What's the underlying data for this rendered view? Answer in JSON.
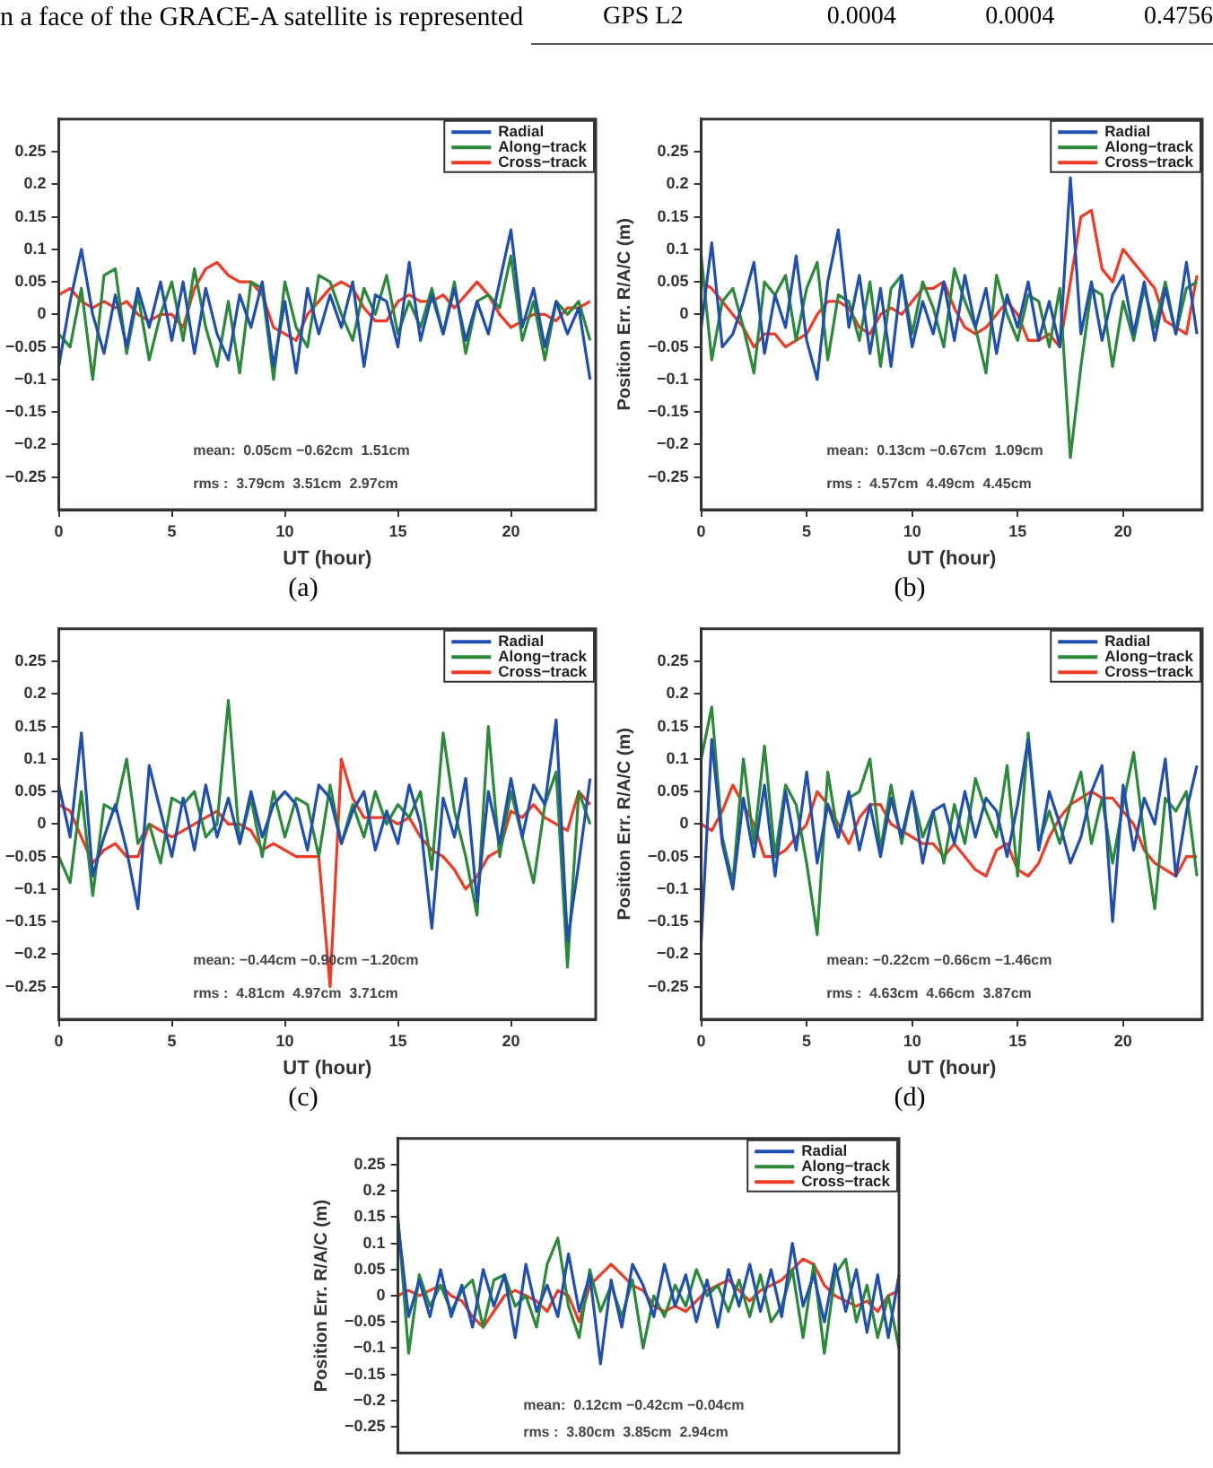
{
  "chart_data": [
    {
      "type": "other",
      "annotations": [
        "n a face of the GRACE-A satellite is represented",
        "GPS L2",
        "0.0004",
        "0.0004",
        "0.4756"
      ]
    },
    {
      "type": "line",
      "xlabel": "UT (hour)",
      "legend": "top right",
      "marker": "none",
      "line_style": "solid",
      "grid": false,
      "x": [
        0,
        0.5,
        1,
        1.5,
        2,
        2.5,
        3,
        3.5,
        4,
        4.5,
        5,
        5.5,
        6,
        6.5,
        7,
        7.5,
        8,
        8.5,
        9,
        9.5,
        10,
        10.5,
        11,
        11.5,
        12,
        12.5,
        13,
        13.5,
        14,
        14.5,
        15,
        15.5,
        16,
        16.5,
        17,
        17.5,
        18,
        18.5,
        19,
        19.5,
        20,
        20.5,
        21,
        21.5,
        22,
        22.5,
        23,
        23.5
      ],
      "xlim": [
        0,
        23.75
      ],
      "xticks": [
        0,
        5,
        10,
        15,
        20
      ],
      "ylim": [
        -0.3,
        0.3
      ],
      "yticks": [
        {
          "value": -0.25,
          "label": "−0.25"
        },
        {
          "value": -0.2,
          "label": "−0.2"
        },
        {
          "value": -0.15,
          "label": "−0.15"
        },
        {
          "value": -0.1,
          "label": "−0.1"
        },
        {
          "value": -0.05,
          "label": "−0.05"
        },
        0,
        0.05,
        0.1,
        0.15,
        0.2,
        0.25
      ],
      "annotations": [
        "mean:  0.05cm −0.62cm  1.51cm",
        "rms :  3.79cm  3.51cm  2.97cm",
        "(a)"
      ],
      "series": [
        {
          "name": "Radial",
          "color": "#1f4fb0",
          "values": [
            -0.08,
            0.02,
            0.1,
            0.0,
            -0.06,
            0.03,
            -0.05,
            0.04,
            -0.02,
            0.05,
            -0.04,
            0.05,
            -0.06,
            0.04,
            -0.03,
            -0.07,
            0.03,
            -0.02,
            0.05,
            -0.08,
            0.02,
            -0.09,
            0.04,
            -0.03,
            0.03,
            -0.02,
            0.05,
            -0.08,
            0.03,
            0.02,
            -0.05,
            0.08,
            -0.04,
            0.03,
            -0.03,
            0.04,
            -0.04,
            0.02,
            -0.03,
            0.05,
            0.13,
            -0.02,
            0.04,
            -0.05,
            0.02,
            -0.03,
            0.01,
            -0.1
          ]
        },
        {
          "name": "Along−track",
          "color": "#2a8a3a",
          "values": [
            -0.03,
            -0.05,
            0.04,
            -0.1,
            0.06,
            0.07,
            -0.06,
            0.03,
            -0.07,
            0.0,
            0.05,
            -0.04,
            0.07,
            -0.02,
            -0.08,
            0.02,
            -0.09,
            0.05,
            0.04,
            -0.1,
            0.05,
            -0.02,
            -0.05,
            0.06,
            0.05,
            0.0,
            -0.04,
            0.04,
            0.0,
            0.06,
            -0.03,
            0.02,
            -0.02,
            0.04,
            -0.03,
            0.05,
            -0.06,
            0.02,
            0.03,
            0.01,
            0.09,
            -0.04,
            0.02,
            -0.07,
            0.02,
            0.0,
            0.02,
            -0.04
          ]
        },
        {
          "name": "Cross−track",
          "color": "#f03a24",
          "values": [
            0.03,
            0.04,
            0.02,
            0.01,
            0.02,
            0.01,
            0.02,
            0.0,
            -0.01,
            0.0,
            0.0,
            -0.02,
            0.04,
            0.07,
            0.08,
            0.06,
            0.05,
            0.05,
            0.03,
            -0.02,
            -0.03,
            -0.04,
            0.0,
            0.02,
            0.04,
            0.05,
            0.04,
            0.01,
            -0.01,
            -0.01,
            0.02,
            0.03,
            0.02,
            0.02,
            0.03,
            0.01,
            0.03,
            0.05,
            0.03,
            0.0,
            -0.02,
            -0.01,
            0.0,
            0.0,
            -0.01,
            0.01,
            0.01,
            0.02
          ]
        }
      ]
    },
    {
      "type": "line",
      "xlabel": "UT (hour)",
      "ylabel": "Position Err. R/A/C (m)",
      "legend": "top right",
      "marker": "none",
      "line_style": "solid",
      "grid": false,
      "x": [
        0,
        0.5,
        1,
        1.5,
        2,
        2.5,
        3,
        3.5,
        4,
        4.5,
        5,
        5.5,
        6,
        6.5,
        7,
        7.5,
        8,
        8.5,
        9,
        9.5,
        10,
        10.5,
        11,
        11.5,
        12,
        12.5,
        13,
        13.5,
        14,
        14.5,
        15,
        15.5,
        16,
        16.5,
        17,
        17.5,
        18,
        18.5,
        19,
        19.5,
        20,
        20.5,
        21,
        21.5,
        22,
        22.5,
        23,
        23.5
      ],
      "xlim": [
        0,
        23.75
      ],
      "xticks": [
        0,
        5,
        10,
        15,
        20
      ],
      "ylim": [
        -0.3,
        0.3
      ],
      "yticks": [
        {
          "value": -0.25,
          "label": "−0.25"
        },
        {
          "value": -0.2,
          "label": "−0.2"
        },
        {
          "value": -0.15,
          "label": "−0.15"
        },
        {
          "value": -0.1,
          "label": "−0.1"
        },
        {
          "value": -0.05,
          "label": "−0.05"
        },
        0,
        0.05,
        0.1,
        0.15,
        0.2,
        0.25
      ],
      "annotations": [
        "mean:  0.13cm −0.67cm  1.09cm",
        "rms :  4.57cm  4.49cm  4.45cm",
        "(b)"
      ],
      "series": [
        {
          "name": "Radial",
          "color": "#1f4fb0",
          "values": [
            -0.02,
            0.11,
            -0.05,
            -0.03,
            0.02,
            0.08,
            -0.06,
            0.03,
            -0.02,
            0.09,
            -0.04,
            -0.1,
            0.05,
            0.13,
            -0.02,
            0.06,
            -0.06,
            0.04,
            -0.08,
            0.06,
            -0.05,
            0.02,
            -0.03,
            0.05,
            -0.04,
            0.06,
            -0.02,
            0.04,
            -0.06,
            0.03,
            -0.02,
            0.05,
            -0.04,
            0.02,
            -0.05,
            0.21,
            -0.03,
            0.05,
            -0.04,
            0.03,
            0.06,
            -0.03,
            0.05,
            -0.04,
            0.04,
            -0.03,
            0.08,
            -0.03
          ]
        },
        {
          "name": "Along−track",
          "color": "#2a8a3a",
          "values": [
            0.09,
            -0.07,
            0.02,
            0.04,
            -0.02,
            -0.09,
            0.05,
            0.03,
            0.06,
            -0.04,
            0.04,
            0.08,
            -0.07,
            0.03,
            0.02,
            -0.04,
            0.05,
            -0.08,
            0.04,
            0.06,
            -0.03,
            0.05,
            0.01,
            -0.05,
            0.07,
            0.02,
            -0.02,
            -0.09,
            0.06,
            0.0,
            -0.04,
            0.03,
            0.02,
            -0.05,
            0.04,
            -0.22,
            -0.08,
            0.04,
            0.03,
            -0.08,
            0.02,
            -0.04,
            0.04,
            -0.02,
            0.05,
            -0.03,
            0.04,
            0.05
          ]
        },
        {
          "name": "Cross−track",
          "color": "#f03a24",
          "values": [
            0.05,
            0.04,
            0.02,
            0.0,
            -0.02,
            -0.05,
            -0.03,
            -0.03,
            -0.05,
            -0.04,
            -0.03,
            0.0,
            0.02,
            0.02,
            0.01,
            -0.02,
            -0.03,
            0.0,
            0.01,
            0.0,
            0.02,
            0.04,
            0.04,
            0.05,
            0.01,
            -0.02,
            -0.03,
            -0.02,
            0.0,
            0.02,
            0.0,
            -0.04,
            -0.04,
            -0.03,
            -0.05,
            0.05,
            0.15,
            0.16,
            0.07,
            0.05,
            0.1,
            0.08,
            0.06,
            0.04,
            -0.01,
            -0.02,
            -0.03,
            0.06
          ]
        }
      ]
    },
    {
      "type": "line",
      "xlabel": "UT (hour)",
      "legend": "top right",
      "marker": "none",
      "line_style": "solid",
      "grid": false,
      "x": [
        0,
        0.5,
        1,
        1.5,
        2,
        2.5,
        3,
        3.5,
        4,
        4.5,
        5,
        5.5,
        6,
        6.5,
        7,
        7.5,
        8,
        8.5,
        9,
        9.5,
        10,
        10.5,
        11,
        11.5,
        12,
        12.5,
        13,
        13.5,
        14,
        14.5,
        15,
        15.5,
        16,
        16.5,
        17,
        17.5,
        18,
        18.5,
        19,
        19.5,
        20,
        20.5,
        21,
        21.5,
        22,
        22.5,
        23,
        23.5
      ],
      "xlim": [
        0,
        23.75
      ],
      "xticks": [
        0,
        5,
        10,
        15,
        20
      ],
      "ylim": [
        -0.3,
        0.3
      ],
      "yticks": [
        {
          "value": -0.25,
          "label": "−0.25"
        },
        {
          "value": -0.2,
          "label": "−0.2"
        },
        {
          "value": -0.15,
          "label": "−0.15"
        },
        {
          "value": -0.1,
          "label": "−0.1"
        },
        {
          "value": -0.05,
          "label": "−0.05"
        },
        0,
        0.05,
        0.1,
        0.15,
        0.2,
        0.25
      ],
      "annotations": [
        "mean: −0.44cm −0.90cm −1.20cm",
        "rms :  4.81cm  4.97cm  3.71cm",
        "(c)"
      ],
      "series": [
        {
          "name": "Radial",
          "color": "#1f4fb0",
          "values": [
            0.06,
            -0.02,
            0.14,
            -0.08,
            -0.02,
            0.03,
            -0.04,
            -0.13,
            0.09,
            0.02,
            -0.05,
            0.04,
            -0.04,
            0.06,
            -0.02,
            0.04,
            -0.03,
            0.05,
            -0.02,
            0.03,
            0.05,
            0.03,
            -0.04,
            0.06,
            0.04,
            -0.03,
            0.02,
            0.05,
            -0.04,
            0.02,
            -0.03,
            0.06,
            0.0,
            -0.16,
            0.04,
            -0.02,
            0.07,
            -0.12,
            0.05,
            -0.03,
            0.07,
            -0.02,
            0.06,
            0.03,
            0.16,
            -0.18,
            -0.06,
            0.07
          ]
        },
        {
          "name": "Along−track",
          "color": "#2a8a3a",
          "values": [
            -0.05,
            -0.09,
            0.05,
            -0.11,
            0.03,
            0.02,
            0.1,
            -0.03,
            0.0,
            -0.06,
            0.04,
            0.03,
            0.05,
            -0.02,
            0.0,
            0.19,
            -0.03,
            0.04,
            -0.05,
            0.05,
            -0.02,
            0.04,
            0.03,
            -0.05,
            0.06,
            -0.03,
            0.03,
            -0.02,
            0.05,
            0.0,
            0.03,
            0.01,
            0.05,
            -0.07,
            0.14,
            0.02,
            -0.05,
            -0.14,
            0.15,
            -0.05,
            0.05,
            -0.02,
            -0.09,
            0.03,
            0.08,
            -0.22,
            0.05,
            0.0
          ]
        },
        {
          "name": "Cross−track",
          "color": "#f03a24",
          "values": [
            0.03,
            0.02,
            -0.02,
            -0.06,
            -0.04,
            -0.03,
            -0.05,
            -0.05,
            0.0,
            -0.01,
            -0.02,
            -0.01,
            0.0,
            0.01,
            0.02,
            0.0,
            0.0,
            -0.01,
            -0.04,
            -0.03,
            -0.04,
            -0.05,
            -0.05,
            -0.05,
            -0.25,
            0.1,
            0.04,
            0.01,
            0.01,
            0.01,
            0.0,
            0.01,
            -0.02,
            -0.04,
            -0.05,
            -0.07,
            -0.1,
            -0.08,
            -0.05,
            -0.04,
            0.02,
            0.01,
            0.03,
            0.01,
            0.0,
            -0.01,
            0.05,
            0.03
          ]
        }
      ]
    },
    {
      "type": "line",
      "xlabel": "UT (hour)",
      "ylabel": "Position Err. R/A/C (m)",
      "legend": "top right",
      "marker": "none",
      "line_style": "solid",
      "grid": false,
      "x": [
        0,
        0.5,
        1,
        1.5,
        2,
        2.5,
        3,
        3.5,
        4,
        4.5,
        5,
        5.5,
        6,
        6.5,
        7,
        7.5,
        8,
        8.5,
        9,
        9.5,
        10,
        10.5,
        11,
        11.5,
        12,
        12.5,
        13,
        13.5,
        14,
        14.5,
        15,
        15.5,
        16,
        16.5,
        17,
        17.5,
        18,
        18.5,
        19,
        19.5,
        20,
        20.5,
        21,
        21.5,
        22,
        22.5,
        23,
        23.5
      ],
      "xlim": [
        0,
        23.75
      ],
      "xticks": [
        0,
        5,
        10,
        15,
        20
      ],
      "ylim": [
        -0.3,
        0.3
      ],
      "yticks": [
        {
          "value": -0.25,
          "label": "−0.25"
        },
        {
          "value": -0.2,
          "label": "−0.2"
        },
        {
          "value": -0.15,
          "label": "−0.15"
        },
        {
          "value": -0.1,
          "label": "−0.1"
        },
        {
          "value": -0.05,
          "label": "−0.05"
        },
        0,
        0.05,
        0.1,
        0.15,
        0.2,
        0.25
      ],
      "annotations": [
        "mean: −0.22cm −0.66cm −1.46cm",
        "rms :  4.63cm  4.66cm  3.87cm",
        "(d)"
      ],
      "series": [
        {
          "name": "Radial",
          "color": "#1f4fb0",
          "values": [
            -0.18,
            0.13,
            -0.03,
            -0.1,
            0.04,
            -0.05,
            0.06,
            -0.08,
            0.05,
            -0.04,
            0.08,
            -0.06,
            0.03,
            -0.02,
            0.05,
            -0.04,
            0.03,
            -0.05,
            0.04,
            -0.02,
            0.05,
            -0.06,
            0.02,
            0.03,
            -0.03,
            0.05,
            -0.02,
            0.04,
            0.02,
            -0.05,
            0.03,
            0.13,
            -0.04,
            0.05,
            0.0,
            -0.06,
            -0.02,
            0.05,
            0.09,
            -0.15,
            0.06,
            -0.04,
            0.04,
            0.0,
            0.1,
            -0.08,
            0.02,
            0.09
          ]
        },
        {
          "name": "Along−track",
          "color": "#2a8a3a",
          "values": [
            0.1,
            0.18,
            -0.02,
            -0.09,
            0.1,
            -0.03,
            0.12,
            -0.05,
            0.06,
            0.03,
            -0.06,
            -0.17,
            0.08,
            -0.02,
            0.04,
            0.05,
            0.1,
            -0.04,
            0.06,
            -0.03,
            0.05,
            -0.02,
            0.02,
            -0.06,
            0.03,
            -0.03,
            0.07,
            0.02,
            -0.02,
            0.09,
            -0.08,
            0.14,
            -0.03,
            0.02,
            -0.03,
            0.03,
            0.08,
            -0.03,
            0.04,
            -0.06,
            0.03,
            0.11,
            -0.02,
            -0.13,
            0.04,
            0.02,
            0.05,
            -0.08
          ]
        },
        {
          "name": "Cross−track",
          "color": "#f03a24",
          "values": [
            0.0,
            -0.01,
            0.02,
            0.06,
            0.03,
            0.0,
            -0.05,
            -0.05,
            -0.04,
            -0.02,
            0.0,
            0.05,
            0.03,
            0.0,
            -0.03,
            0.01,
            0.03,
            0.03,
            0.0,
            -0.01,
            -0.02,
            -0.03,
            -0.03,
            -0.05,
            -0.03,
            -0.05,
            -0.07,
            -0.08,
            -0.04,
            -0.03,
            -0.07,
            -0.08,
            -0.06,
            -0.02,
            0.01,
            0.03,
            0.04,
            0.05,
            0.04,
            0.04,
            0.02,
            0.0,
            -0.04,
            -0.06,
            -0.07,
            -0.08,
            -0.05,
            -0.05
          ]
        }
      ]
    },
    {
      "type": "line",
      "ylabel": "Position Err. R/A/C (m)",
      "legend": "top right",
      "marker": "none",
      "line_style": "solid",
      "grid": false,
      "tick_labels": "y",
      "categories": [
        null,
        null,
        null,
        null,
        null,
        null,
        null,
        null,
        null,
        null,
        null,
        null,
        null,
        null,
        null,
        null,
        null,
        null,
        null,
        null,
        null,
        null,
        null,
        null,
        null,
        null,
        null,
        null,
        null,
        null,
        null,
        null,
        null,
        null,
        null,
        null,
        null,
        null,
        null,
        null,
        null,
        null,
        null,
        null,
        null,
        null,
        null,
        null
      ],
      "ylim": [
        -0.3,
        0.3
      ],
      "yticks": [
        {
          "value": -0.25,
          "label": "−0.25"
        },
        {
          "value": -0.2,
          "label": "−0.2"
        },
        {
          "value": -0.15,
          "label": "−0.15"
        },
        {
          "value": -0.1,
          "label": "−0.1"
        },
        {
          "value": -0.05,
          "label": "−0.05"
        },
        0,
        0.05,
        0.1,
        0.15,
        0.2,
        0.25
      ],
      "annotations": [
        "mean:  0.12cm −0.42cm −0.04cm",
        "rms :  3.80cm  3.85cm  2.94cm"
      ],
      "series": [
        {
          "name": "Radial",
          "color": "#1f4fb0",
          "values": [
            0.14,
            -0.04,
            0.03,
            -0.04,
            0.05,
            -0.04,
            0.02,
            -0.06,
            0.05,
            -0.02,
            0.04,
            -0.08,
            0.06,
            -0.03,
            0.02,
            -0.04,
            0.08,
            -0.03,
            0.04,
            -0.13,
            0.03,
            -0.06,
            0.06,
            0.02,
            -0.04,
            0.06,
            -0.02,
            0.04,
            -0.05,
            0.03,
            -0.06,
            0.05,
            -0.02,
            0.06,
            -0.03,
            0.05,
            -0.04,
            0.1,
            -0.02,
            0.04,
            -0.05,
            0.06,
            -0.03,
            0.05,
            -0.07,
            0.04,
            -0.08,
            0.04
          ]
        },
        {
          "name": "Along−track",
          "color": "#2a8a3a",
          "values": [
            0.15,
            -0.11,
            0.04,
            -0.02,
            0.02,
            -0.03,
            0.01,
            0.03,
            -0.06,
            0.03,
            0.04,
            -0.02,
            0.0,
            -0.06,
            0.06,
            0.11,
            -0.02,
            -0.08,
            0.05,
            -0.03,
            0.02,
            -0.04,
            0.03,
            -0.1,
            0.0,
            -0.04,
            0.02,
            -0.02,
            0.05,
            0.0,
            0.02,
            -0.03,
            0.03,
            -0.04,
            0.04,
            -0.05,
            -0.02,
            0.05,
            -0.08,
            0.06,
            -0.11,
            0.04,
            0.07,
            -0.05,
            0.02,
            -0.08,
            0.0,
            -0.1
          ]
        },
        {
          "name": "Cross−track",
          "color": "#f03a24",
          "values": [
            0.0,
            0.01,
            0.0,
            0.01,
            0.02,
            0.0,
            -0.01,
            -0.04,
            -0.06,
            -0.03,
            0.0,
            0.01,
            0.0,
            -0.01,
            -0.03,
            0.01,
            0.0,
            -0.05,
            0.02,
            0.04,
            0.06,
            0.04,
            0.02,
            0.01,
            -0.02,
            -0.03,
            -0.02,
            -0.03,
            -0.01,
            0.01,
            0.02,
            0.03,
            0.01,
            -0.01,
            0.01,
            0.02,
            0.03,
            0.05,
            0.07,
            0.06,
            0.02,
            0.0,
            -0.01,
            -0.02,
            -0.01,
            -0.03,
            0.0,
            0.01
          ]
        }
      ]
    }
  ]
}
